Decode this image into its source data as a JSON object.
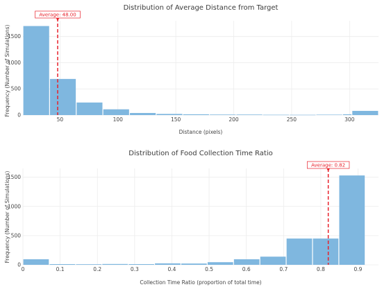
{
  "chart_data": [
    {
      "type": "bar",
      "title": "Distribution of Average Distance from Target",
      "xlabel": "Distance (pixels)",
      "ylabel": "Frequency (Number of Simulations)",
      "xlim": [
        18,
        325
      ],
      "ylim": [
        0,
        1800
      ],
      "xticks": [
        50,
        100,
        150,
        200,
        250,
        300
      ],
      "yticks": [
        0,
        500,
        1000,
        1500
      ],
      "bar_color": "#7fb7df",
      "bins": [
        {
          "x0": 18,
          "x1": 41,
          "count": 1700
        },
        {
          "x0": 41,
          "x1": 64,
          "count": 690
        },
        {
          "x0": 64,
          "x1": 87,
          "count": 240
        },
        {
          "x0": 87,
          "x1": 110,
          "count": 110
        },
        {
          "x0": 110,
          "x1": 133,
          "count": 40
        },
        {
          "x0": 133,
          "x1": 156,
          "count": 22
        },
        {
          "x0": 156,
          "x1": 179,
          "count": 15
        },
        {
          "x0": 179,
          "x1": 202,
          "count": 10
        },
        {
          "x0": 202,
          "x1": 225,
          "count": 10
        },
        {
          "x0": 225,
          "x1": 248,
          "count": 6
        },
        {
          "x0": 248,
          "x1": 271,
          "count": 5
        },
        {
          "x0": 271,
          "x1": 294,
          "count": 8
        },
        {
          "x0": 294,
          "x1": 302,
          "count": 15
        },
        {
          "x0": 302,
          "x1": 325,
          "count": 80
        }
      ],
      "average": {
        "value": 48.0,
        "label": "Average: 48.00",
        "color": "#e8202a"
      },
      "grid": true,
      "legend": "none"
    },
    {
      "type": "bar",
      "title": "Distribution of Food Collection Time Ratio",
      "xlabel": "Collection Time Ratio (proportion of total time)",
      "ylabel": "Frequency (Number of Simulations)",
      "xlim": [
        0,
        0.955
      ],
      "ylim": [
        0,
        1650
      ],
      "xticks": [
        0,
        0.1,
        0.2,
        0.3,
        0.4,
        0.5,
        0.6,
        0.7,
        0.8,
        0.9
      ],
      "yticks": [
        0,
        500,
        1000,
        1500
      ],
      "bar_color": "#7fb7df",
      "bins": [
        {
          "x0": 0.0,
          "x1": 0.0707,
          "count": 95
        },
        {
          "x0": 0.0707,
          "x1": 0.1414,
          "count": 12
        },
        {
          "x0": 0.1414,
          "x1": 0.2121,
          "count": 10
        },
        {
          "x0": 0.2121,
          "x1": 0.2828,
          "count": 14
        },
        {
          "x0": 0.2828,
          "x1": 0.3535,
          "count": 12
        },
        {
          "x0": 0.3535,
          "x1": 0.4242,
          "count": 25
        },
        {
          "x0": 0.4242,
          "x1": 0.4949,
          "count": 22
        },
        {
          "x0": 0.4949,
          "x1": 0.5656,
          "count": 45
        },
        {
          "x0": 0.5656,
          "x1": 0.6363,
          "count": 95
        },
        {
          "x0": 0.6363,
          "x1": 0.707,
          "count": 140
        },
        {
          "x0": 0.707,
          "x1": 0.7777,
          "count": 450
        },
        {
          "x0": 0.7777,
          "x1": 0.8484,
          "count": 450
        },
        {
          "x0": 0.8484,
          "x1": 0.9191,
          "count": 1530
        }
      ],
      "average": {
        "value": 0.82,
        "label": "Average: 0.82",
        "color": "#e8202a"
      },
      "grid": true,
      "legend": "none"
    }
  ]
}
